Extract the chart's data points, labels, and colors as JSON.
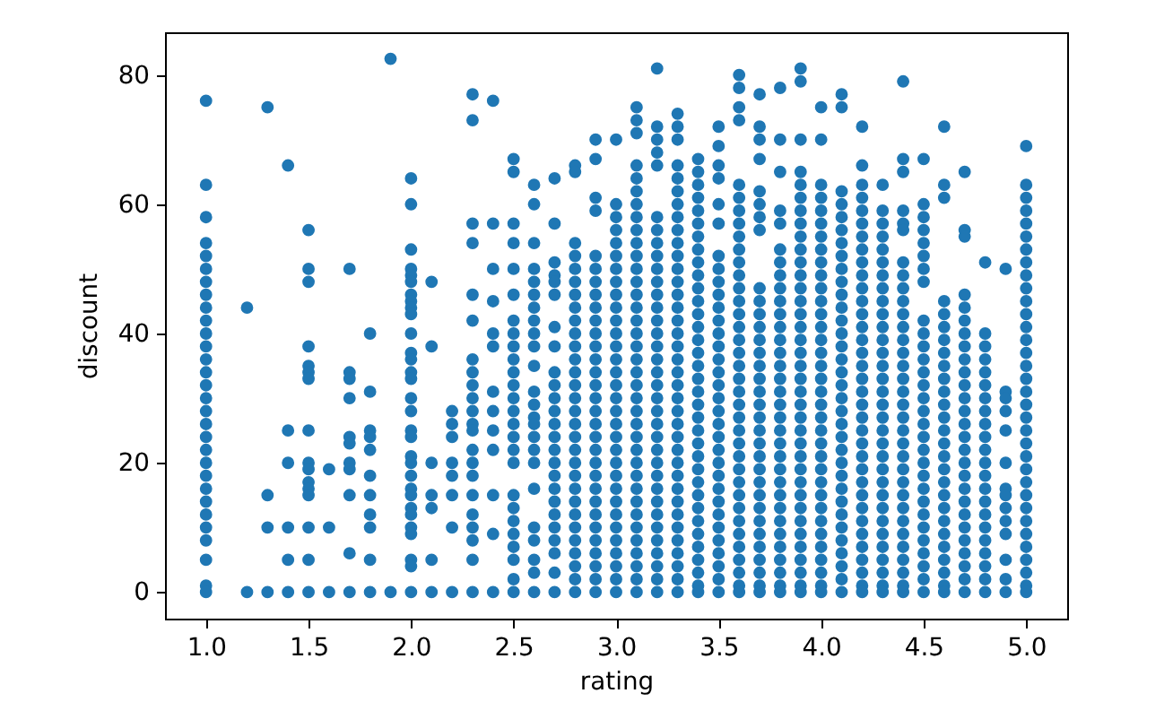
{
  "chart_data": {
    "type": "scatter",
    "xlabel": "rating",
    "ylabel": "discount",
    "xlim": [
      0.8,
      5.2
    ],
    "ylim": [
      -4.1,
      86.6
    ],
    "xticks": [
      {
        "value": 1,
        "label": "1.0"
      },
      {
        "value": 1.5,
        "label": "1.5"
      },
      {
        "value": 2,
        "label": "2.0"
      },
      {
        "value": 2.5,
        "label": "2.5"
      },
      {
        "value": 3,
        "label": "3.0"
      },
      {
        "value": 3.5,
        "label": "3.5"
      },
      {
        "value": 4,
        "label": "4.0"
      },
      {
        "value": 4.5,
        "label": "4.5"
      },
      {
        "value": 5,
        "label": "5.0"
      }
    ],
    "yticks": [
      0,
      20,
      40,
      60,
      80
    ],
    "grid": false,
    "marker": "circle",
    "series": [
      {
        "color": "#1f77b4",
        "x": [
          1,
          1,
          1,
          1,
          1,
          1,
          1,
          1,
          1,
          1,
          1,
          1,
          1,
          1,
          1,
          1,
          1,
          1,
          1,
          1,
          1,
          1,
          1,
          1,
          1,
          1,
          1,
          1,
          1,
          1,
          1.2,
          1.2,
          1.3,
          1.3,
          1.3,
          1.3,
          1.4,
          1.4,
          1.4,
          1.4,
          1.4,
          1.4,
          1.5,
          1.5,
          1.5,
          1.5,
          1.5,
          1.5,
          1.5,
          1.5,
          1.5,
          1.5,
          1.5,
          1.5,
          1.5,
          1.5,
          1.5,
          1.5,
          1.6,
          1.6,
          1.6,
          1.7,
          1.7,
          1.7,
          1.7,
          1.7,
          1.7,
          1.7,
          1.7,
          1.7,
          1.7,
          1.7,
          1.8,
          1.8,
          1.8,
          1.8,
          1.8,
          1.8,
          1.8,
          1.8,
          1.8,
          1.8,
          1.8,
          1.9,
          1.9,
          2,
          2,
          2,
          2,
          2,
          2,
          2,
          2,
          2,
          2,
          2,
          2,
          2,
          2,
          2,
          2,
          2,
          2,
          2,
          2,
          2,
          2,
          2,
          2,
          2,
          2,
          2,
          2,
          2,
          2,
          2,
          2.1,
          2.1,
          2.1,
          2.1,
          2.1,
          2.1,
          2.1,
          2.2,
          2.2,
          2.2,
          2.2,
          2.2,
          2.2,
          2.2,
          2.2,
          2.3,
          2.3,
          2.3,
          2.3,
          2.3,
          2.3,
          2.3,
          2.3,
          2.3,
          2.3,
          2.3,
          2.3,
          2.3,
          2.3,
          2.3,
          2.3,
          2.3,
          2.3,
          2.3,
          2.3,
          2.3,
          2.3,
          2.4,
          2.4,
          2.4,
          2.4,
          2.4,
          2.4,
          2.4,
          2.4,
          2.4,
          2.4,
          2.4,
          2.4,
          2.4,
          2.5,
          2.5,
          2.5,
          2.5,
          2.5,
          2.5,
          2.5,
          2.5,
          2.5,
          2.5,
          2.5,
          2.5,
          2.5,
          2.5,
          2.5,
          2.5,
          2.5,
          2.5,
          2.5,
          2.5,
          2.5,
          2.5,
          2.5,
          2.5,
          2.5,
          2.5,
          2.6,
          2.6,
          2.6,
          2.6,
          2.6,
          2.6,
          2.6,
          2.6,
          2.6,
          2.6,
          2.6,
          2.6,
          2.6,
          2.6,
          2.6,
          2.6,
          2.6,
          2.6,
          2.6,
          2.6,
          2.6,
          2.6,
          2.6,
          2.6,
          2.7,
          2.7,
          2.7,
          2.7,
          2.7,
          2.7,
          2.7,
          2.7,
          2.7,
          2.7,
          2.7,
          2.7,
          2.7,
          2.7,
          2.7,
          2.7,
          2.7,
          2.7,
          2.7,
          2.7,
          2.7,
          2.7,
          2.7,
          2.7,
          2.7,
          2.8,
          2.8,
          2.8,
          2.8,
          2.8,
          2.8,
          2.8,
          2.8,
          2.8,
          2.8,
          2.8,
          2.8,
          2.8,
          2.8,
          2.8,
          2.8,
          2.8,
          2.8,
          2.8,
          2.8,
          2.8,
          2.8,
          2.8,
          2.8,
          2.8,
          2.8,
          2.8,
          2.8,
          2.8,
          2.8,
          2.9,
          2.9,
          2.9,
          2.9,
          2.9,
          2.9,
          2.9,
          2.9,
          2.9,
          2.9,
          2.9,
          2.9,
          2.9,
          2.9,
          2.9,
          2.9,
          2.9,
          2.9,
          2.9,
          2.9,
          2.9,
          2.9,
          2.9,
          2.9,
          2.9,
          2.9,
          2.9,
          2.9,
          2.9,
          2.9,
          2.9,
          3,
          3,
          3,
          3,
          3,
          3,
          3,
          3,
          3,
          3,
          3,
          3,
          3,
          3,
          3,
          3,
          3,
          3,
          3,
          3,
          3,
          3,
          3,
          3,
          3,
          3,
          3,
          3,
          3,
          3,
          3,
          3,
          3.1,
          3.1,
          3.1,
          3.1,
          3.1,
          3.1,
          3.1,
          3.1,
          3.1,
          3.1,
          3.1,
          3.1,
          3.1,
          3.1,
          3.1,
          3.1,
          3.1,
          3.1,
          3.1,
          3.1,
          3.1,
          3.1,
          3.1,
          3.1,
          3.1,
          3.1,
          3.1,
          3.1,
          3.1,
          3.1,
          3.1,
          3.1,
          3.1,
          3.1,
          3.1,
          3.1,
          3.1,
          3.2,
          3.2,
          3.2,
          3.2,
          3.2,
          3.2,
          3.2,
          3.2,
          3.2,
          3.2,
          3.2,
          3.2,
          3.2,
          3.2,
          3.2,
          3.2,
          3.2,
          3.2,
          3.2,
          3.2,
          3.2,
          3.2,
          3.2,
          3.2,
          3.2,
          3.2,
          3.2,
          3.2,
          3.2,
          3.2,
          3.2,
          3.2,
          3.2,
          3.2,
          3.2,
          3.3,
          3.3,
          3.3,
          3.3,
          3.3,
          3.3,
          3.3,
          3.3,
          3.3,
          3.3,
          3.3,
          3.3,
          3.3,
          3.3,
          3.3,
          3.3,
          3.3,
          3.3,
          3.3,
          3.3,
          3.3,
          3.3,
          3.3,
          3.3,
          3.3,
          3.3,
          3.3,
          3.3,
          3.3,
          3.3,
          3.3,
          3.3,
          3.3,
          3.3,
          3.3,
          3.3,
          3.3,
          3.4,
          3.4,
          3.4,
          3.4,
          3.4,
          3.4,
          3.4,
          3.4,
          3.4,
          3.4,
          3.4,
          3.4,
          3.4,
          3.4,
          3.4,
          3.4,
          3.4,
          3.4,
          3.4,
          3.4,
          3.4,
          3.4,
          3.4,
          3.4,
          3.4,
          3.4,
          3.4,
          3.4,
          3.4,
          3.4,
          3.4,
          3.4,
          3.4,
          3.4,
          3.4,
          3.5,
          3.5,
          3.5,
          3.5,
          3.5,
          3.5,
          3.5,
          3.5,
          3.5,
          3.5,
          3.5,
          3.5,
          3.5,
          3.5,
          3.5,
          3.5,
          3.5,
          3.5,
          3.5,
          3.5,
          3.5,
          3.5,
          3.5,
          3.5,
          3.5,
          3.5,
          3.5,
          3.5,
          3.5,
          3.5,
          3.5,
          3.5,
          3.5,
          3.6,
          3.6,
          3.6,
          3.6,
          3.6,
          3.6,
          3.6,
          3.6,
          3.6,
          3.6,
          3.6,
          3.6,
          3.6,
          3.6,
          3.6,
          3.6,
          3.6,
          3.6,
          3.6,
          3.6,
          3.6,
          3.6,
          3.6,
          3.6,
          3.6,
          3.6,
          3.6,
          3.6,
          3.6,
          3.6,
          3.6,
          3.6,
          3.6,
          3.6,
          3.6,
          3.6,
          3.6,
          3.7,
          3.7,
          3.7,
          3.7,
          3.7,
          3.7,
          3.7,
          3.7,
          3.7,
          3.7,
          3.7,
          3.7,
          3.7,
          3.7,
          3.7,
          3.7,
          3.7,
          3.7,
          3.7,
          3.7,
          3.7,
          3.7,
          3.7,
          3.7,
          3.7,
          3.7,
          3.7,
          3.7,
          3.7,
          3.7,
          3.7,
          3.7,
          3.7,
          3.8,
          3.8,
          3.8,
          3.8,
          3.8,
          3.8,
          3.8,
          3.8,
          3.8,
          3.8,
          3.8,
          3.8,
          3.8,
          3.8,
          3.8,
          3.8,
          3.8,
          3.8,
          3.8,
          3.8,
          3.8,
          3.8,
          3.8,
          3.8,
          3.8,
          3.8,
          3.8,
          3.8,
          3.8,
          3.8,
          3.8,
          3.8,
          3.8,
          3.9,
          3.9,
          3.9,
          3.9,
          3.9,
          3.9,
          3.9,
          3.9,
          3.9,
          3.9,
          3.9,
          3.9,
          3.9,
          3.9,
          3.9,
          3.9,
          3.9,
          3.9,
          3.9,
          3.9,
          3.9,
          3.9,
          3.9,
          3.9,
          3.9,
          3.9,
          3.9,
          3.9,
          3.9,
          3.9,
          3.9,
          3.9,
          3.9,
          3.9,
          3.9,
          3.9,
          3.9,
          4,
          4,
          4,
          4,
          4,
          4,
          4,
          4,
          4,
          4,
          4,
          4,
          4,
          4,
          4,
          4,
          4,
          4,
          4,
          4,
          4,
          4,
          4,
          4,
          4,
          4,
          4,
          4,
          4,
          4,
          4,
          4,
          4,
          4,
          4,
          4.1,
          4.1,
          4.1,
          4.1,
          4.1,
          4.1,
          4.1,
          4.1,
          4.1,
          4.1,
          4.1,
          4.1,
          4.1,
          4.1,
          4.1,
          4.1,
          4.1,
          4.1,
          4.1,
          4.1,
          4.1,
          4.1,
          4.1,
          4.1,
          4.1,
          4.1,
          4.1,
          4.1,
          4.1,
          4.1,
          4.1,
          4.1,
          4.1,
          4.1,
          4.2,
          4.2,
          4.2,
          4.2,
          4.2,
          4.2,
          4.2,
          4.2,
          4.2,
          4.2,
          4.2,
          4.2,
          4.2,
          4.2,
          4.2,
          4.2,
          4.2,
          4.2,
          4.2,
          4.2,
          4.2,
          4.2,
          4.2,
          4.2,
          4.2,
          4.2,
          4.2,
          4.2,
          4.2,
          4.2,
          4.2,
          4.2,
          4.2,
          4.2,
          4.2,
          4.3,
          4.3,
          4.3,
          4.3,
          4.3,
          4.3,
          4.3,
          4.3,
          4.3,
          4.3,
          4.3,
          4.3,
          4.3,
          4.3,
          4.3,
          4.3,
          4.3,
          4.3,
          4.3,
          4.3,
          4.3,
          4.3,
          4.3,
          4.3,
          4.3,
          4.3,
          4.3,
          4.3,
          4.3,
          4.3,
          4.3,
          4.3,
          4.4,
          4.4,
          4.4,
          4.4,
          4.4,
          4.4,
          4.4,
          4.4,
          4.4,
          4.4,
          4.4,
          4.4,
          4.4,
          4.4,
          4.4,
          4.4,
          4.4,
          4.4,
          4.4,
          4.4,
          4.4,
          4.4,
          4.4,
          4.4,
          4.4,
          4.4,
          4.4,
          4.4,
          4.4,
          4.4,
          4.4,
          4.4,
          4.4,
          4.5,
          4.5,
          4.5,
          4.5,
          4.5,
          4.5,
          4.5,
          4.5,
          4.5,
          4.5,
          4.5,
          4.5,
          4.5,
          4.5,
          4.5,
          4.5,
          4.5,
          4.5,
          4.5,
          4.5,
          4.5,
          4.5,
          4.5,
          4.5,
          4.5,
          4.5,
          4.5,
          4.5,
          4.5,
          4.5,
          4.6,
          4.6,
          4.6,
          4.6,
          4.6,
          4.6,
          4.6,
          4.6,
          4.6,
          4.6,
          4.6,
          4.6,
          4.6,
          4.6,
          4.6,
          4.6,
          4.6,
          4.6,
          4.6,
          4.6,
          4.6,
          4.6,
          4.6,
          4.6,
          4.6,
          4.6,
          4.6,
          4.7,
          4.7,
          4.7,
          4.7,
          4.7,
          4.7,
          4.7,
          4.7,
          4.7,
          4.7,
          4.7,
          4.7,
          4.7,
          4.7,
          4.7,
          4.7,
          4.7,
          4.7,
          4.7,
          4.7,
          4.7,
          4.7,
          4.7,
          4.7,
          4.7,
          4.7,
          4.7,
          4.8,
          4.8,
          4.8,
          4.8,
          4.8,
          4.8,
          4.8,
          4.8,
          4.8,
          4.8,
          4.8,
          4.8,
          4.8,
          4.8,
          4.8,
          4.8,
          4.8,
          4.8,
          4.8,
          4.8,
          4.8,
          4.8,
          4.9,
          4.9,
          4.9,
          4.9,
          4.9,
          4.9,
          4.9,
          4.9,
          4.9,
          4.9,
          4.9,
          4.9,
          4.9,
          4.9,
          5,
          5,
          5,
          5,
          5,
          5,
          5,
          5,
          5,
          5,
          5,
          5,
          5,
          5,
          5,
          5,
          5,
          5,
          5,
          5,
          5,
          5,
          5,
          5,
          5,
          5,
          5,
          5,
          5,
          5,
          5,
          5,
          5,
          5
        ],
        "values": [
          76,
          63,
          58,
          54,
          52,
          50,
          48,
          46,
          44,
          42,
          40,
          38,
          36,
          34,
          32,
          30,
          28,
          26,
          24,
          22,
          20,
          18,
          16,
          14,
          12,
          10,
          8,
          5,
          1,
          0,
          44,
          0,
          75,
          15,
          10,
          0,
          66,
          25,
          20,
          10,
          5,
          0,
          56,
          50,
          48,
          38,
          35,
          34,
          33,
          25,
          20,
          19,
          17,
          16,
          15,
          10,
          5,
          0,
          19,
          10,
          0,
          50,
          34,
          33,
          30,
          24,
          23,
          20,
          19,
          15,
          6,
          0,
          40,
          31,
          25,
          24,
          22,
          18,
          15,
          12,
          10,
          5,
          0,
          82.5,
          0,
          64,
          60,
          53,
          50,
          49,
          48,
          46,
          45,
          44,
          43,
          40,
          37,
          36,
          34,
          33,
          30,
          28,
          25,
          24,
          21,
          20,
          18,
          16,
          15,
          13,
          12,
          10,
          9,
          5,
          4,
          0,
          48,
          38,
          20,
          15,
          13,
          5,
          0,
          28,
          26,
          24,
          20,
          18,
          15,
          10,
          0,
          77,
          73,
          57,
          54,
          46,
          42,
          36,
          34,
          32,
          30,
          28,
          26,
          25,
          22,
          20,
          18,
          15,
          12,
          10,
          8,
          5,
          0,
          76,
          57,
          50,
          45,
          40,
          38,
          31,
          28,
          25,
          22,
          15,
          9,
          0,
          67,
          65,
          57,
          54,
          50,
          46,
          42,
          40,
          38,
          36,
          34,
          32,
          30,
          28,
          26,
          24,
          22,
          20,
          15,
          13,
          11,
          9,
          7,
          5,
          2,
          0,
          63,
          60,
          54,
          50,
          48,
          46,
          44,
          42,
          40,
          38,
          35,
          31,
          29,
          27,
          26,
          24,
          22,
          20,
          16,
          10,
          8,
          5,
          3,
          0,
          64,
          57,
          51,
          49,
          48,
          46,
          41,
          38,
          34,
          32,
          30,
          28,
          26,
          24,
          22,
          20,
          18,
          16,
          14,
          12,
          10,
          8,
          6,
          3,
          0,
          66,
          65,
          54,
          52,
          50,
          48,
          46,
          44,
          42,
          40,
          38,
          36,
          34,
          32,
          30,
          28,
          26,
          24,
          22,
          20,
          18,
          16,
          14,
          12,
          10,
          8,
          6,
          4,
          2,
          0,
          70,
          67,
          61,
          59,
          52,
          50,
          48,
          46,
          44,
          42,
          40,
          38,
          36,
          34,
          32,
          30,
          28,
          26,
          24,
          22,
          20,
          18,
          16,
          14,
          12,
          10,
          8,
          6,
          4,
          2,
          0,
          70,
          60,
          58,
          56,
          54,
          52,
          50,
          48,
          46,
          44,
          42,
          40,
          38,
          36,
          34,
          32,
          30,
          28,
          26,
          24,
          22,
          20,
          18,
          16,
          14,
          12,
          10,
          8,
          6,
          4,
          2,
          0,
          75,
          73,
          71,
          66,
          64,
          62,
          60,
          58,
          56,
          54,
          52,
          50,
          48,
          46,
          44,
          42,
          40,
          38,
          36,
          34,
          32,
          30,
          28,
          26,
          24,
          22,
          20,
          18,
          16,
          14,
          12,
          10,
          8,
          6,
          4,
          2,
          0,
          81,
          72,
          70,
          68,
          66,
          58,
          56,
          54,
          52,
          50,
          48,
          46,
          44,
          42,
          40,
          38,
          36,
          34,
          32,
          30,
          28,
          26,
          24,
          22,
          20,
          18,
          16,
          14,
          12,
          10,
          8,
          6,
          4,
          2,
          0,
          74,
          72,
          70,
          66,
          64,
          62,
          60,
          58,
          56,
          54,
          52,
          50,
          48,
          46,
          44,
          42,
          40,
          38,
          36,
          34,
          32,
          30,
          28,
          26,
          24,
          22,
          20,
          18,
          16,
          14,
          12,
          10,
          8,
          6,
          4,
          2,
          0,
          67,
          65,
          63,
          61,
          59,
          57,
          55,
          53,
          51,
          49,
          47,
          45,
          43,
          41,
          39,
          37,
          35,
          33,
          31,
          29,
          27,
          25,
          23,
          21,
          19,
          17,
          15,
          13,
          11,
          9,
          7,
          5,
          3,
          1,
          0,
          72,
          69,
          66,
          64,
          60,
          57,
          52,
          50,
          48,
          46,
          44,
          42,
          40,
          38,
          36,
          34,
          32,
          30,
          28,
          26,
          24,
          22,
          20,
          18,
          16,
          14,
          12,
          10,
          8,
          6,
          4,
          2,
          0,
          80,
          78,
          75,
          73,
          63,
          61,
          59,
          57,
          55,
          53,
          51,
          49,
          47,
          45,
          43,
          41,
          39,
          37,
          35,
          33,
          31,
          29,
          27,
          25,
          23,
          21,
          19,
          17,
          15,
          13,
          11,
          9,
          7,
          5,
          3,
          1,
          0,
          77,
          72,
          70,
          67,
          62,
          60,
          58,
          56,
          47,
          45,
          43,
          41,
          39,
          37,
          35,
          33,
          31,
          29,
          27,
          25,
          23,
          21,
          19,
          17,
          15,
          13,
          11,
          9,
          7,
          5,
          3,
          1,
          0,
          78,
          70,
          65,
          59,
          57,
          53,
          51,
          49,
          47,
          45,
          43,
          41,
          39,
          37,
          35,
          33,
          31,
          29,
          27,
          25,
          23,
          21,
          19,
          17,
          15,
          13,
          11,
          9,
          7,
          5,
          3,
          1,
          0,
          81,
          79,
          70,
          65,
          63,
          61,
          59,
          57,
          55,
          53,
          51,
          49,
          47,
          45,
          43,
          41,
          39,
          37,
          35,
          33,
          31,
          29,
          27,
          25,
          23,
          21,
          19,
          17,
          15,
          13,
          11,
          9,
          7,
          5,
          3,
          1,
          0,
          75,
          70,
          63,
          61,
          59,
          57,
          55,
          53,
          51,
          49,
          47,
          45,
          43,
          41,
          39,
          37,
          35,
          33,
          31,
          29,
          27,
          25,
          23,
          21,
          19,
          17,
          15,
          13,
          11,
          9,
          7,
          5,
          3,
          1,
          0,
          77,
          75,
          62,
          60,
          58,
          56,
          54,
          52,
          50,
          48,
          46,
          44,
          42,
          40,
          38,
          36,
          34,
          32,
          30,
          28,
          26,
          24,
          22,
          20,
          18,
          16,
          14,
          12,
          10,
          8,
          6,
          4,
          2,
          0,
          72,
          66,
          63,
          61,
          59,
          57,
          55,
          53,
          51,
          49,
          47,
          45,
          43,
          41,
          39,
          37,
          35,
          33,
          31,
          29,
          27,
          25,
          23,
          21,
          19,
          17,
          15,
          13,
          11,
          9,
          7,
          5,
          3,
          1,
          0,
          63,
          59,
          57,
          55,
          53,
          51,
          49,
          47,
          45,
          43,
          41,
          39,
          37,
          35,
          33,
          31,
          29,
          27,
          25,
          23,
          21,
          19,
          17,
          15,
          13,
          11,
          9,
          7,
          5,
          3,
          1,
          0,
          79,
          67,
          65,
          59,
          57,
          56,
          51,
          49,
          47,
          45,
          43,
          41,
          39,
          37,
          35,
          33,
          31,
          29,
          27,
          25,
          23,
          21,
          19,
          17,
          15,
          13,
          11,
          9,
          7,
          5,
          3,
          1,
          0,
          67,
          60,
          58,
          56,
          54,
          52,
          50,
          48,
          42,
          40,
          38,
          36,
          34,
          32,
          30,
          28,
          26,
          24,
          22,
          20,
          18,
          16,
          14,
          12,
          10,
          8,
          6,
          4,
          2,
          0,
          72,
          63,
          61,
          45,
          43,
          41,
          39,
          37,
          35,
          33,
          31,
          29,
          27,
          25,
          23,
          21,
          19,
          17,
          15,
          13,
          11,
          9,
          7,
          5,
          3,
          1,
          0,
          65,
          56,
          55,
          46,
          44,
          42,
          40,
          38,
          36,
          34,
          32,
          30,
          28,
          26,
          24,
          22,
          20,
          18,
          16,
          14,
          12,
          10,
          8,
          6,
          4,
          2,
          0,
          51,
          40,
          38,
          36,
          34,
          32,
          30,
          28,
          26,
          24,
          22,
          20,
          18,
          16,
          14,
          12,
          10,
          8,
          6,
          4,
          2,
          0,
          50,
          31,
          30,
          28,
          25,
          20,
          16,
          15,
          13,
          11,
          9,
          5,
          2,
          0,
          69,
          63,
          61,
          59,
          57,
          55,
          53,
          51,
          49,
          47,
          45,
          43,
          41,
          39,
          37,
          35,
          33,
          31,
          29,
          27,
          25,
          23,
          21,
          19,
          17,
          15,
          13,
          11,
          9,
          7,
          5,
          3,
          1,
          0
        ]
      }
    ]
  }
}
